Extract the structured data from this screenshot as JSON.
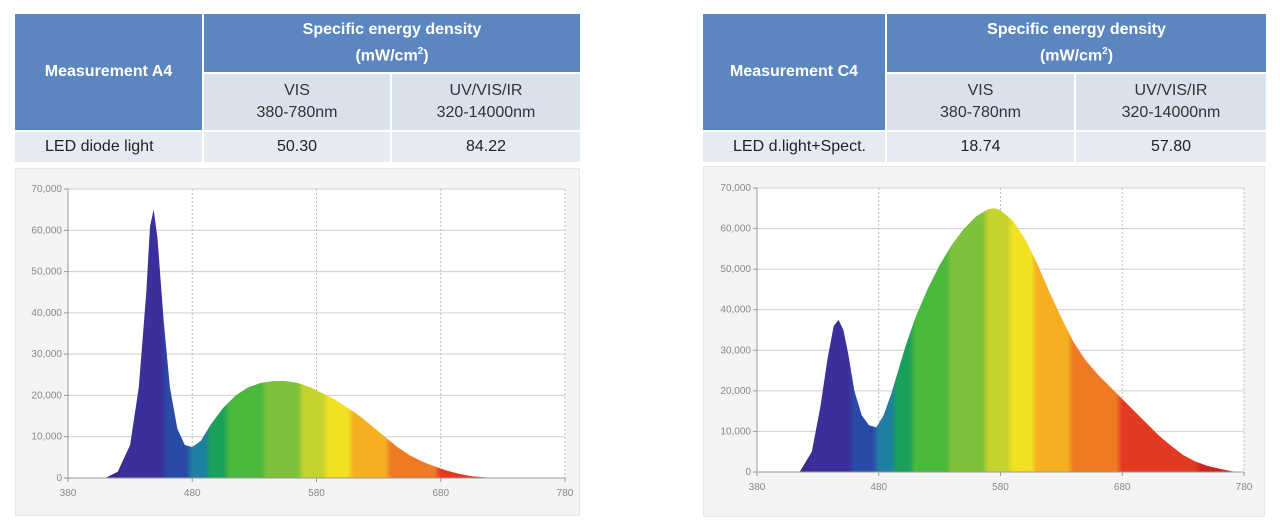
{
  "panels": [
    {
      "table": {
        "measurement_label": "Measurement A4",
        "header_title": "Specific energy density",
        "header_unit_prefix": "(mW/cm",
        "header_unit_exp": "2",
        "header_unit_suffix": ")",
        "col1_name": "VIS",
        "col1_range": "380-780nm",
        "col2_name": "UV/VIS/IR",
        "col2_range": "320-14000nm",
        "row_label": "LED diode light",
        "vis_value": "50.30",
        "full_value": "84.22"
      }
    },
    {
      "table": {
        "measurement_label": "Measurement C4",
        "header_title": "Specific energy density",
        "header_unit_prefix": "(mW/cm",
        "header_unit_exp": "2",
        "header_unit_suffix": ")",
        "col1_name": "VIS",
        "col1_range": "380-780nm",
        "col2_name": "UV/VIS/IR",
        "col2_range": "320-14000nm",
        "row_label": "LED d.light+Spect.",
        "vis_value": "18.74",
        "full_value": "57.80"
      }
    }
  ],
  "chart_data": [
    {
      "type": "area",
      "xlim": [
        380,
        780
      ],
      "ylim": [
        0,
        70000
      ],
      "x_ticks": [
        "380",
        "480",
        "580",
        "680",
        "780"
      ],
      "y_ticks": [
        "0",
        "10,000",
        "20,000",
        "30,000",
        "40,000",
        "50,000",
        "60,000",
        "70,000"
      ],
      "grid": true,
      "fill": "visible-spectrum-gradient",
      "x": [
        410,
        420,
        430,
        437,
        443,
        446,
        449,
        452,
        457,
        462,
        468,
        474,
        480,
        487,
        495,
        505,
        515,
        525,
        535,
        545,
        555,
        565,
        575,
        585,
        595,
        605,
        615,
        625,
        635,
        645,
        655,
        665,
        675,
        685,
        695,
        705,
        715,
        725
      ],
      "values": [
        0,
        1500,
        8000,
        22000,
        45000,
        61000,
        65000,
        58000,
        38000,
        22000,
        12000,
        8000,
        7500,
        9000,
        13000,
        17000,
        20000,
        22000,
        23000,
        23500,
        23500,
        23000,
        22000,
        20500,
        19000,
        17000,
        15000,
        12500,
        10000,
        7500,
        5500,
        4000,
        2800,
        1800,
        1000,
        400,
        150,
        0
      ]
    },
    {
      "type": "area",
      "xlim": [
        380,
        780
      ],
      "ylim": [
        0,
        70000
      ],
      "x_ticks": [
        "380",
        "480",
        "580",
        "680",
        "780"
      ],
      "y_ticks": [
        "0",
        "10,000",
        "20,000",
        "30,000",
        "40,000",
        "50,000",
        "60,000",
        "70,000"
      ],
      "grid": true,
      "fill": "visible-spectrum-gradient",
      "x": [
        415,
        425,
        432,
        438,
        443,
        447,
        451,
        455,
        460,
        466,
        472,
        478,
        484,
        490,
        496,
        502,
        510,
        520,
        530,
        540,
        550,
        560,
        570,
        575,
        580,
        590,
        600,
        610,
        620,
        630,
        640,
        650,
        660,
        670,
        680,
        690,
        700,
        710,
        720,
        730,
        740,
        750,
        760,
        770,
        775
      ],
      "values": [
        0,
        5000,
        16000,
        28000,
        36000,
        37500,
        35000,
        29000,
        20000,
        14000,
        11500,
        11000,
        14000,
        19000,
        25000,
        31000,
        38000,
        45000,
        51000,
        56000,
        60000,
        63000,
        64800,
        65000,
        64500,
        62000,
        57500,
        51500,
        44500,
        38000,
        32000,
        27500,
        24000,
        21000,
        18000,
        15000,
        12000,
        9000,
        6500,
        4200,
        2600,
        1500,
        800,
        200,
        0
      ]
    }
  ]
}
